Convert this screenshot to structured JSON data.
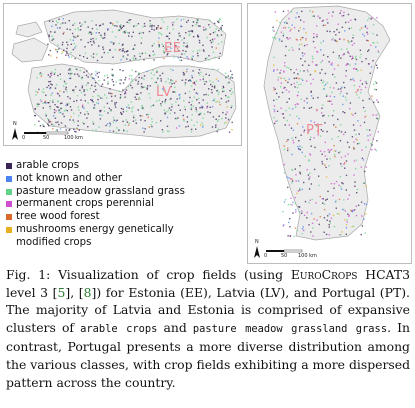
{
  "map_baltic": {
    "label_ee": "EE",
    "label_lv": "LV",
    "scale_ticks": [
      "0",
      "50",
      "100 km"
    ],
    "north_symbol": "N"
  },
  "map_portugal": {
    "label_pt": "PT",
    "scale_ticks": [
      "0",
      "50",
      "100 km"
    ],
    "north_symbol": "N"
  },
  "legend": {
    "items": [
      {
        "label": "arable crops",
        "color": "#3b2456"
      },
      {
        "label": "not known and other",
        "color": "#4c83f0"
      },
      {
        "label": "pasture meadow grassland grass",
        "color": "#62d18a"
      },
      {
        "label": "permanent crops perennial",
        "color": "#cf4fcf"
      },
      {
        "label": "tree wood forest",
        "color": "#d96a2a"
      },
      {
        "label": "mushrooms energy genetically modified crops",
        "color": "#e8b020"
      }
    ]
  },
  "caption": {
    "fig_label": "Fig. 1:",
    "text_1": " Visualization of crop fields (using ",
    "eurocrops": "EuroCrops",
    "text_2": " HCAT3 level 3 [",
    "ref_1": "5",
    "text_3": "], [",
    "ref_2": "8",
    "text_4": "]) for Estonia (EE), Latvia (LV), and Portugal (PT). The majority of Latvia and Estonia is comprised of expansive clusters of ",
    "mono_1": "arable crops",
    "text_5": " and ",
    "mono_2": "pasture meadow grassland grass",
    "text_6": ". In contrast, Portugal presents a more diverse distribution among the various classes, with crop fields exhibiting a more dispersed pattern across the country."
  }
}
